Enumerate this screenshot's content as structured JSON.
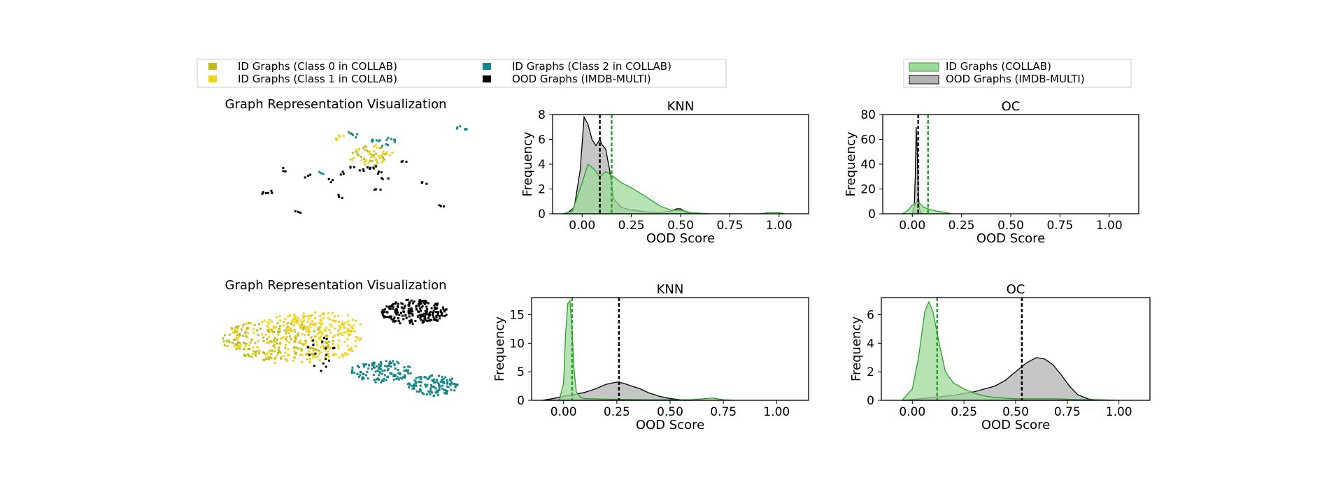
{
  "legends": {
    "scatter": [
      {
        "label": "ID Graphs (Class 0 in COLLAB)",
        "color": "#bcbd22"
      },
      {
        "label": "ID Graphs (Class 1 in COLLAB)",
        "color": "#f2d21b"
      },
      {
        "label": "ID Graphs (Class 2 in COLLAB)",
        "color": "#17868a"
      },
      {
        "label": "OOD Graphs (IMDB-MULTI)",
        "color": "#000000"
      }
    ],
    "density": [
      {
        "label": "ID Graphs (COLLAB)",
        "fill": "#9fd99b",
        "stroke": "#2ca02c"
      },
      {
        "label": "OOD Graphs (IMDB-MULTI)",
        "fill": "#b3b3b3",
        "stroke": "#000000"
      }
    ]
  },
  "chart_data": [
    {
      "type": "scatter",
      "title": "Graph Representation Visualization",
      "description_clusters": [
        {
          "class": "Class 0",
          "points": [
            [
              0.55,
              0.32
            ],
            [
              0.58,
              0.35
            ],
            [
              0.6,
              0.3
            ],
            [
              0.52,
              0.38
            ],
            [
              0.57,
              0.42
            ],
            [
              0.62,
              0.36
            ],
            [
              0.54,
              0.28
            ],
            [
              0.59,
              0.45
            ],
            [
              0.61,
              0.4
            ],
            [
              0.5,
              0.34
            ]
          ]
        },
        {
          "class": "Class 1",
          "points": [
            [
              0.56,
              0.33
            ],
            [
              0.6,
              0.38
            ],
            [
              0.53,
              0.4
            ],
            [
              0.58,
              0.28
            ],
            [
              0.62,
              0.33
            ],
            [
              0.55,
              0.44
            ],
            [
              0.51,
              0.3
            ],
            [
              0.6,
              0.43
            ],
            [
              0.57,
              0.37
            ],
            [
              0.64,
              0.35
            ],
            [
              0.49,
              0.41
            ],
            [
              0.44,
              0.18
            ],
            [
              0.42,
              0.21
            ]
          ]
        },
        {
          "class": "Class 2",
          "points": [
            [
              0.6,
              0.2
            ],
            [
              0.64,
              0.19
            ],
            [
              0.58,
              0.22
            ],
            [
              0.66,
              0.21
            ],
            [
              0.62,
              0.25
            ],
            [
              0.92,
              0.07
            ],
            [
              0.95,
              0.08
            ],
            [
              0.35,
              0.55
            ],
            [
              0.47,
              0.13
            ],
            [
              0.5,
              0.16
            ]
          ]
        },
        {
          "class": "OOD",
          "points": [
            [
              0.6,
              0.55
            ],
            [
              0.62,
              0.6
            ],
            [
              0.58,
              0.48
            ],
            [
              0.52,
              0.52
            ],
            [
              0.56,
              0.5
            ],
            [
              0.45,
              0.55
            ],
            [
              0.48,
              0.5
            ],
            [
              0.3,
              0.58
            ],
            [
              0.12,
              0.75
            ],
            [
              0.14,
              0.73
            ],
            [
              0.44,
              0.78
            ],
            [
              0.78,
              0.65
            ],
            [
              0.7,
              0.42
            ],
            [
              0.85,
              0.88
            ],
            [
              0.26,
              0.94
            ],
            [
              0.4,
              0.62
            ],
            [
              0.2,
              0.51
            ],
            [
              0.59,
              0.72
            ]
          ]
        }
      ]
    },
    {
      "type": "area",
      "title": "KNN",
      "xlabel": "OOD Score",
      "ylabel": "Frequency",
      "xlim": [
        -0.15,
        1.15
      ],
      "ylim": [
        0,
        8
      ],
      "xticks": [
        "0.00",
        "0.25",
        "0.50",
        "0.75",
        "1.00"
      ],
      "xtick_values": [
        0,
        0.25,
        0.5,
        0.75,
        1.0
      ],
      "yticks": [
        "0",
        "2",
        "4",
        "6",
        "8"
      ],
      "ytick_values": [
        0,
        2,
        4,
        6,
        8
      ],
      "series": [
        {
          "kind": "id",
          "x": [
            -0.1,
            -0.05,
            0,
            0.03,
            0.06,
            0.09,
            0.12,
            0.15,
            0.2,
            0.25,
            0.3,
            0.35,
            0.4,
            0.45,
            0.5,
            0.55,
            0.6,
            0.65,
            0.7,
            0.75,
            0.8,
            0.85,
            0.9,
            0.95,
            1.0,
            1.03
          ],
          "y": [
            0,
            0.2,
            2.5,
            4.0,
            3.6,
            3.0,
            3.4,
            3.1,
            2.5,
            2.1,
            1.6,
            1.1,
            0.6,
            0.3,
            0.3,
            0.1,
            0.05,
            0,
            0,
            0,
            0,
            0,
            0,
            0.1,
            0.1,
            0
          ]
        },
        {
          "kind": "ood",
          "x": [
            -0.08,
            -0.04,
            -0.01,
            0.01,
            0.03,
            0.05,
            0.07,
            0.09,
            0.1,
            0.12,
            0.14,
            0.16,
            0.2,
            0.25,
            0.3,
            0.35,
            0.4,
            0.45,
            0.48,
            0.5,
            0.53,
            0.56
          ],
          "y": [
            0,
            0.5,
            3.5,
            7.8,
            7.2,
            6.0,
            5.5,
            6.0,
            5.6,
            5.2,
            3.5,
            1.2,
            0.5,
            0.3,
            0.2,
            0.1,
            0.1,
            0.2,
            0.4,
            0.4,
            0.1,
            0
          ]
        }
      ],
      "thresholds": {
        "ood": 0.09,
        "id": 0.15
      }
    },
    {
      "type": "area",
      "title": "OC",
      "xlabel": "OOD Score",
      "ylabel": "Frequency",
      "xlim": [
        -0.15,
        1.15
      ],
      "ylim": [
        0,
        80
      ],
      "xticks": [
        "0.00",
        "0.25",
        "0.50",
        "0.75",
        "1.00"
      ],
      "xtick_values": [
        0,
        0.25,
        0.5,
        0.75,
        1.0
      ],
      "yticks": [
        "0",
        "20",
        "40",
        "60",
        "80"
      ],
      "ytick_values": [
        0,
        20,
        40,
        60,
        80
      ],
      "series": [
        {
          "kind": "id",
          "x": [
            -0.05,
            -0.02,
            0,
            0.02,
            0.04,
            0.06,
            0.08,
            0.1,
            0.13,
            0.17,
            0.2
          ],
          "y": [
            0,
            3,
            7,
            9,
            8,
            5,
            4,
            3,
            2,
            1,
            0
          ]
        },
        {
          "kind": "ood",
          "x": [
            0.0,
            0.01,
            0.015,
            0.02,
            0.025,
            0.03,
            0.035,
            0.04,
            0.05
          ],
          "y": [
            0,
            6,
            30,
            70,
            50,
            20,
            6,
            2,
            0
          ]
        }
      ],
      "thresholds": {
        "ood": 0.03,
        "id": 0.08
      }
    },
    {
      "type": "area",
      "title": "KNN",
      "xlabel": "OOD Score",
      "ylabel": "Frequency",
      "xlim": [
        -0.15,
        1.15
      ],
      "ylim": [
        0,
        18
      ],
      "xticks": [
        "0.00",
        "0.25",
        "0.50",
        "0.75",
        "1.00"
      ],
      "xtick_values": [
        0,
        0.25,
        0.5,
        0.75,
        1.0
      ],
      "yticks": [
        "0",
        "5",
        "10",
        "15"
      ],
      "ytick_values": [
        0,
        5,
        10,
        15
      ],
      "series": [
        {
          "kind": "id",
          "x": [
            -0.02,
            0.0,
            0.01,
            0.02,
            0.03,
            0.04,
            0.05,
            0.06,
            0.08,
            0.1,
            0.2,
            0.4,
            0.6,
            0.7,
            0.75,
            0.8
          ],
          "y": [
            0,
            3,
            12,
            17,
            17.5,
            12,
            5,
            1.5,
            0.5,
            0.3,
            0.2,
            0.1,
            0.1,
            0.4,
            0.1,
            0
          ]
        },
        {
          "kind": "ood",
          "x": [
            -0.1,
            -0.05,
            0,
            0.05,
            0.1,
            0.15,
            0.2,
            0.25,
            0.28,
            0.32,
            0.36,
            0.4,
            0.45,
            0.5,
            0.55,
            0.6
          ],
          "y": [
            0,
            0.3,
            0.7,
            1.0,
            1.4,
            2.0,
            2.8,
            3.2,
            3.0,
            2.5,
            2.0,
            1.3,
            0.7,
            0.3,
            0.1,
            0
          ]
        }
      ],
      "thresholds": {
        "ood": 0.26,
        "id": 0.04
      }
    },
    {
      "type": "area",
      "title": "OC",
      "xlabel": "OOD Score",
      "ylabel": "Frequency",
      "xlim": [
        -0.15,
        1.15
      ],
      "ylim": [
        0,
        7.2
      ],
      "xticks": [
        "0.00",
        "0.25",
        "0.50",
        "0.75",
        "1.00"
      ],
      "xtick_values": [
        0,
        0.25,
        0.5,
        0.75,
        1.0
      ],
      "yticks": [
        "0",
        "2",
        "4",
        "6"
      ],
      "ytick_values": [
        0,
        2,
        4,
        6
      ],
      "series": [
        {
          "kind": "id",
          "x": [
            -0.05,
            0,
            0.03,
            0.06,
            0.08,
            0.1,
            0.13,
            0.16,
            0.2,
            0.25,
            0.3,
            0.35,
            0.4,
            0.5,
            0.6,
            0.7,
            0.8,
            0.9,
            1.0
          ],
          "y": [
            0,
            0.8,
            3.0,
            6.2,
            6.9,
            6.2,
            4.0,
            2.0,
            1.2,
            0.8,
            0.5,
            0.3,
            0.2,
            0.1,
            0.1,
            0.1,
            0.05,
            0.05,
            0
          ]
        },
        {
          "kind": "ood",
          "x": [
            -0.05,
            0,
            0.1,
            0.2,
            0.3,
            0.4,
            0.45,
            0.5,
            0.55,
            0.6,
            0.64,
            0.68,
            0.72,
            0.76,
            0.8,
            0.85,
            0.9
          ],
          "y": [
            0,
            0.05,
            0.2,
            0.35,
            0.6,
            1.0,
            1.4,
            2.0,
            2.6,
            3.0,
            2.9,
            2.5,
            1.8,
            1.0,
            0.4,
            0.1,
            0
          ]
        }
      ],
      "thresholds": {
        "ood": 0.53,
        "id": 0.12
      }
    }
  ]
}
